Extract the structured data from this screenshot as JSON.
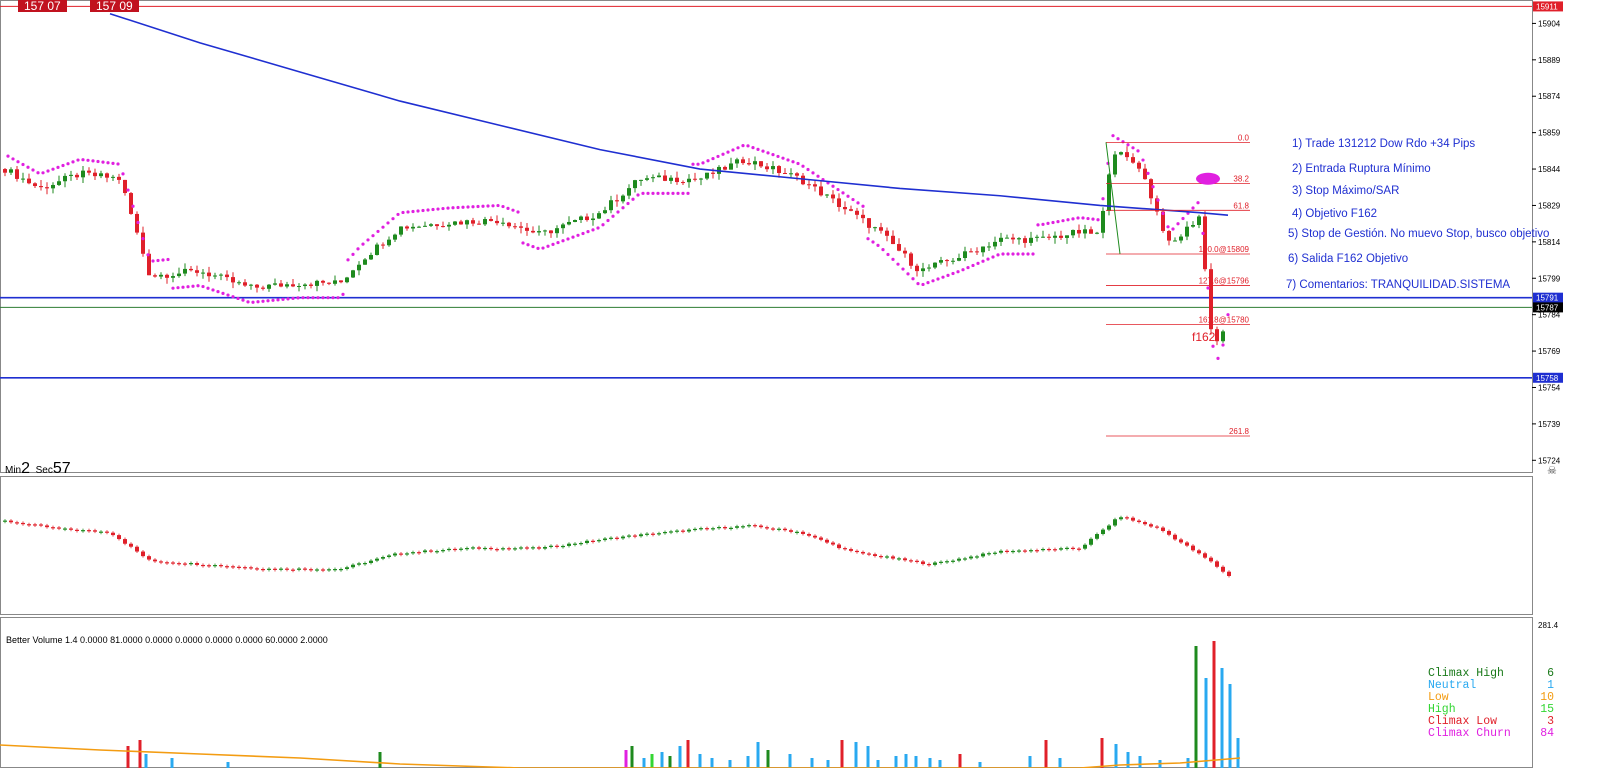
{
  "header_boxes": [
    "157 07",
    "157 09"
  ],
  "timer": {
    "min_label": "Min",
    "min_value": "2",
    "sec_label": "Sec",
    "sec_value": "57"
  },
  "annotations": [
    "1) Trade 131212 Dow Rdo +34 Pips",
    "2) Entrada Ruptura Mínimo",
    "3) Stop Máximo/SAR",
    "4) Objetivo F162",
    "5) Stop de Gestión. No muevo Stop, busco objetivo",
    "6) Salida F162 Objetivo",
    "7) Comentarios: TRANQUILIDAD.SISTEMA"
  ],
  "f162_label": "f162",
  "volume_title": "Better Volume 1.4 0.0000 81.0000 0.0000 0.0000 0.0000 0.0000 60.0000 2.0000",
  "volume_legend": [
    {
      "name": "Climax High",
      "count": "6",
      "color": "#1a7a1a"
    },
    {
      "name": "Neutral",
      "count": "1",
      "color": "#29a9f0"
    },
    {
      "name": "Low",
      "count": "10",
      "color": "#f39c12"
    },
    {
      "name": "High",
      "count": "15",
      "color": "#33d633"
    },
    {
      "name": "Climax Low",
      "count": "3",
      "color": "#e0202a"
    },
    {
      "name": "Climax Churn",
      "count": "84",
      "color": "#e020e0"
    }
  ],
  "chart_data": {
    "type": "line",
    "price_axis": {
      "ticks": [
        "15904",
        "15889",
        "15874",
        "15859",
        "15844",
        "15829",
        "15814",
        "15799",
        "15784",
        "15769",
        "15754",
        "15739",
        "15724"
      ],
      "range": [
        15720,
        15912
      ]
    },
    "current_price_tags": {
      "top": "15911",
      "upper": "15791",
      "bid": "15787",
      "lower": "15758"
    },
    "horizontal_lines": [
      {
        "price": 15911,
        "color": "#e0202a"
      },
      {
        "price": 15791,
        "color": "#1f2fd1"
      },
      {
        "price": 15787,
        "color": "#2e7d32"
      },
      {
        "price": 15758,
        "color": "#1f2fd1"
      }
    ],
    "fibonacci": {
      "high": 15855,
      "low": 15809,
      "levels": [
        {
          "ratio": "0.0",
          "label": "0.0",
          "price": 15855
        },
        {
          "ratio": "38.2",
          "label": "38.2",
          "price": 15838
        },
        {
          "ratio": "61.8",
          "label": "61.8",
          "price": 15827
        },
        {
          "ratio": "100.0",
          "label": "100.0@15809",
          "price": 15809
        },
        {
          "ratio": "127.6",
          "label": "127.6@15796",
          "price": 15796
        },
        {
          "ratio": "161.8",
          "label": "161.8@15780",
          "price": 15780
        },
        {
          "ratio": "261.8",
          "label": "261.8",
          "price": 15734
        }
      ]
    },
    "ma_line": {
      "color": "#1f2fd1",
      "points": [
        [
          110,
          15908
        ],
        [
          200,
          15896
        ],
        [
          300,
          15884
        ],
        [
          400,
          15872
        ],
        [
          500,
          15862
        ],
        [
          600,
          15852
        ],
        [
          700,
          15844
        ],
        [
          800,
          15840
        ],
        [
          900,
          15836
        ],
        [
          1000,
          15833
        ],
        [
          1100,
          15829
        ],
        [
          1200,
          15826
        ],
        [
          1228,
          15825
        ]
      ]
    },
    "close_path": [
      [
        5,
        15844
      ],
      [
        40,
        15836
      ],
      [
        80,
        15842
      ],
      [
        120,
        15840
      ],
      [
        150,
        15800
      ],
      [
        200,
        15802
      ],
      [
        250,
        15795
      ],
      [
        300,
        15797
      ],
      [
        340,
        15797
      ],
      [
        360,
        15806
      ],
      [
        400,
        15820
      ],
      [
        450,
        15822
      ],
      [
        500,
        15823
      ],
      [
        540,
        15817
      ],
      [
        600,
        15826
      ],
      [
        640,
        15840
      ],
      [
        700,
        15840
      ],
      [
        745,
        15848
      ],
      [
        800,
        15840
      ],
      [
        840,
        15829
      ],
      [
        880,
        15818
      ],
      [
        920,
        15802
      ],
      [
        960,
        15808
      ],
      [
        1000,
        15815
      ],
      [
        1040,
        15815
      ],
      [
        1080,
        15818
      ],
      [
        1100,
        15817
      ],
      [
        1112,
        15852
      ],
      [
        1140,
        15845
      ],
      [
        1170,
        15812
      ],
      [
        1200,
        15825
      ],
      [
        1210,
        15780
      ],
      [
        1220,
        15770
      ],
      [
        1228,
        15790
      ]
    ],
    "lower_oscillator": {
      "points": [
        [
          5,
          15
        ],
        [
          60,
          10
        ],
        [
          110,
          8
        ],
        [
          150,
          -10
        ],
        [
          200,
          -12
        ],
        [
          270,
          -15
        ],
        [
          340,
          -15
        ],
        [
          400,
          -5
        ],
        [
          470,
          -2
        ],
        [
          540,
          -2
        ],
        [
          620,
          5
        ],
        [
          700,
          10
        ],
        [
          750,
          12
        ],
        [
          800,
          8
        ],
        [
          850,
          -4
        ],
        [
          930,
          -12
        ],
        [
          1000,
          -4
        ],
        [
          1080,
          -2
        ],
        [
          1120,
          18
        ],
        [
          1160,
          10
        ],
        [
          1210,
          -10
        ],
        [
          1230,
          -20
        ]
      ]
    },
    "volume_max": 281.4,
    "volume_label": "281.4"
  }
}
